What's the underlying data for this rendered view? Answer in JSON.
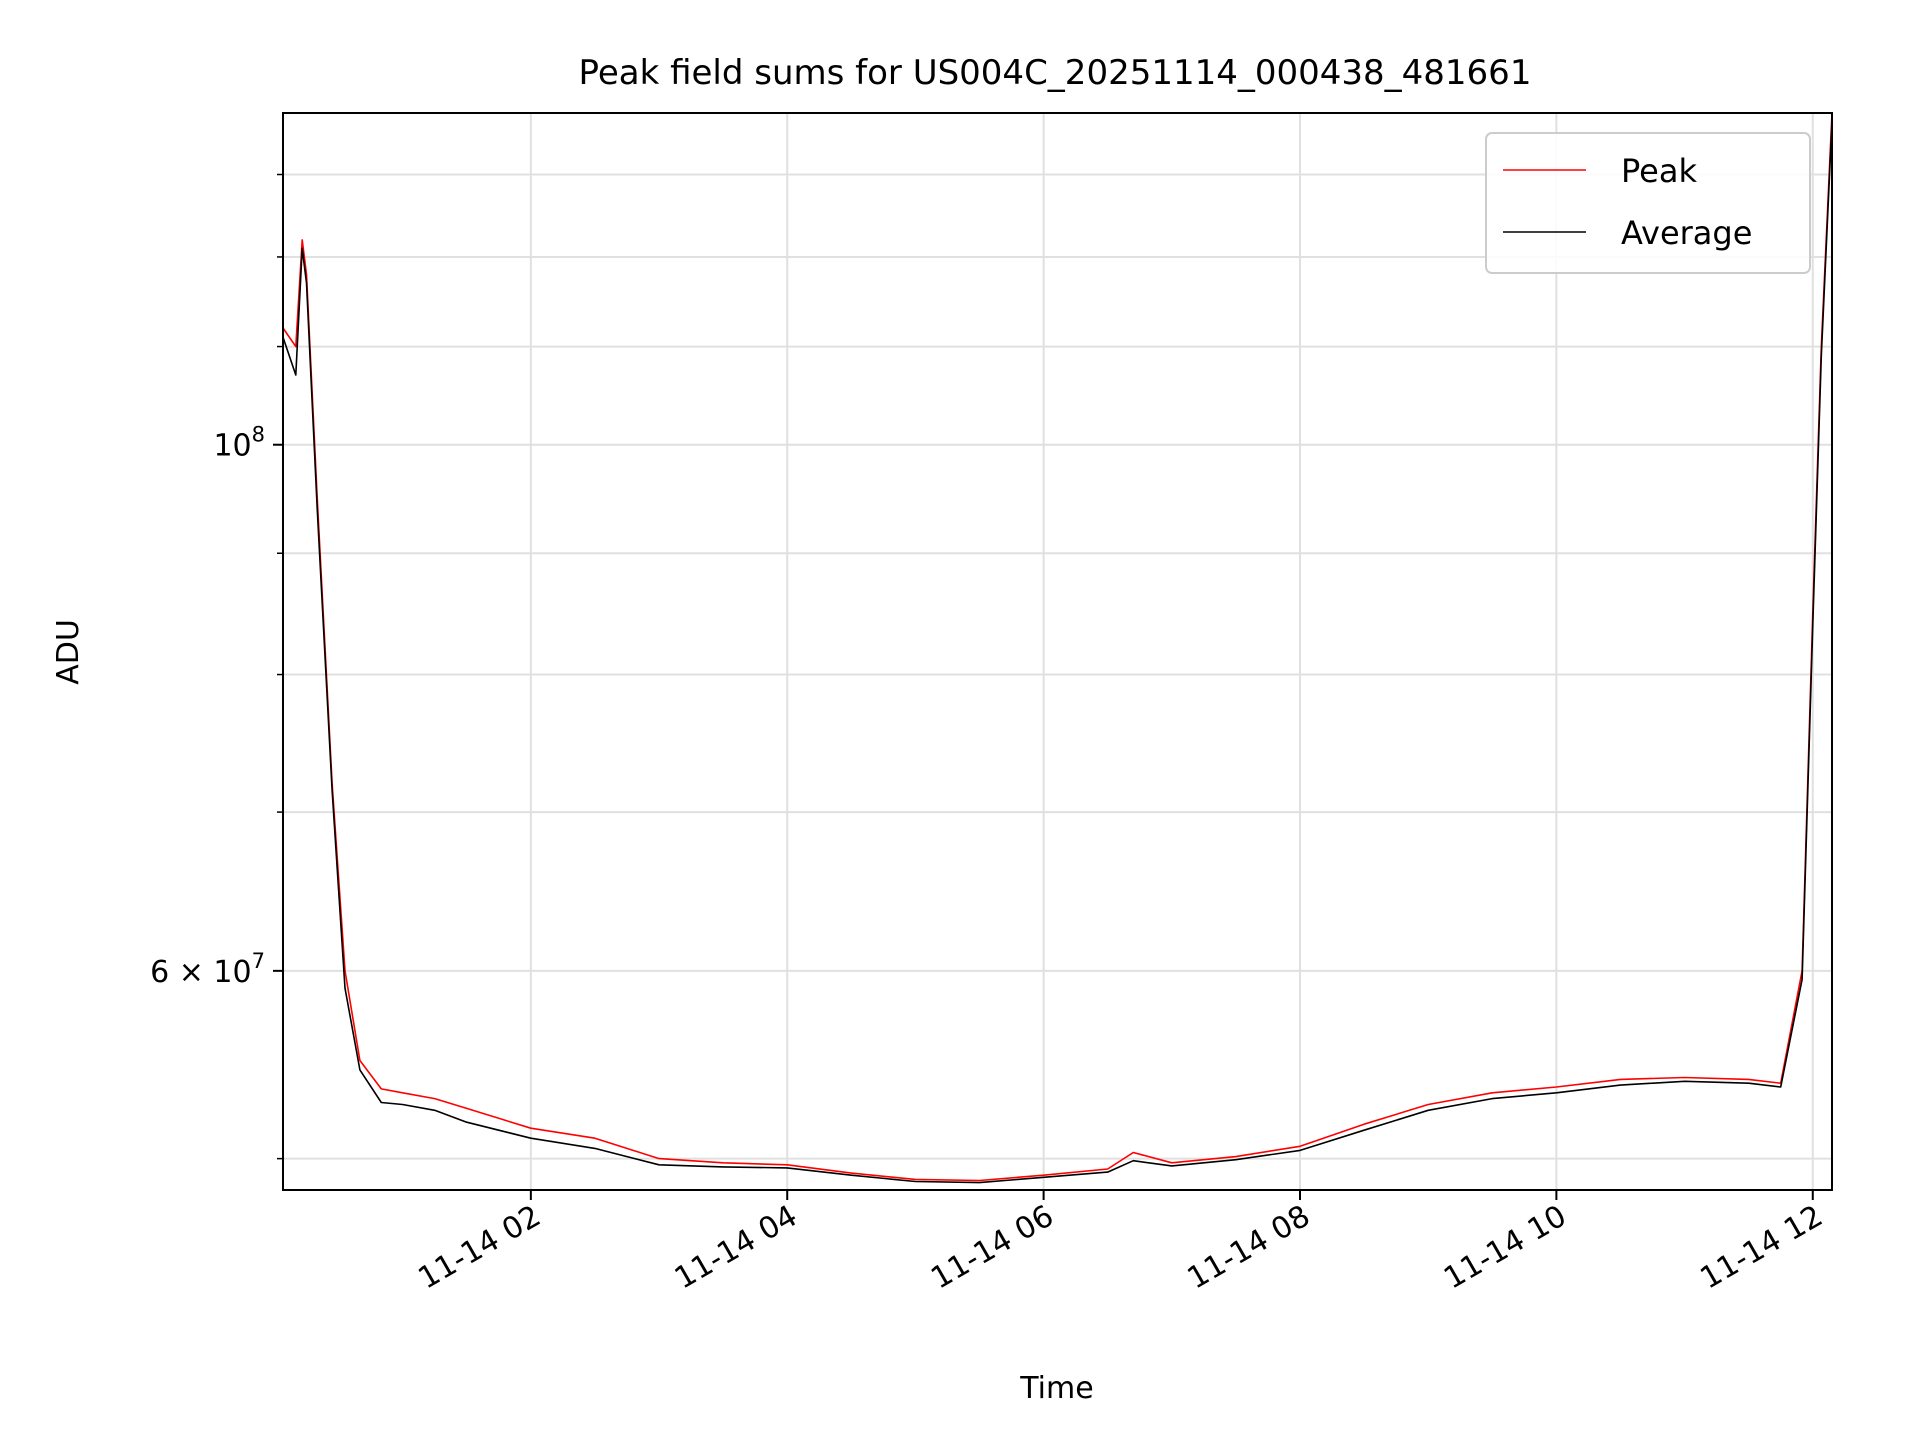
{
  "chart_data": {
    "type": "line",
    "title": "Peak field sums for US004C_20251114_000438_481661",
    "xlabel": "Time",
    "ylabel": "ADU",
    "y_scale": "log",
    "ylim": [
      48500000,
      138000000
    ],
    "xlim": [
      "2025-11-14 00:04",
      "2025-11-14 12:09"
    ],
    "grid": true,
    "legend": "top-right",
    "x_ticks": [
      "11-14 02",
      "11-14 04",
      "11-14 06",
      "11-14 08",
      "11-14 10",
      "11-14 12"
    ],
    "y_tick_labels": [
      {
        "base": "10",
        "exp": "8",
        "value": 100000000
      },
      {
        "prefix": "6 × 10",
        "exp": "7",
        "value": 60000000
      }
    ],
    "series": [
      {
        "name": "Peak",
        "color": "#ff0000",
        "x": [
          "2025-11-14 00:04",
          "2025-11-14 00:10",
          "2025-11-14 00:13",
          "2025-11-14 00:15",
          "2025-11-14 00:20",
          "2025-11-14 00:27",
          "2025-11-14 00:33",
          "2025-11-14 00:40",
          "2025-11-14 00:50",
          "2025-11-14 01:00",
          "2025-11-14 01:15",
          "2025-11-14 01:30",
          "2025-11-14 02:00",
          "2025-11-14 02:30",
          "2025-11-14 03:00",
          "2025-11-14 03:30",
          "2025-11-14 04:00",
          "2025-11-14 04:30",
          "2025-11-14 05:00",
          "2025-11-14 05:30",
          "2025-11-14 06:00",
          "2025-11-14 06:30",
          "2025-11-14 06:42",
          "2025-11-14 07:00",
          "2025-11-14 07:30",
          "2025-11-14 08:00",
          "2025-11-14 08:30",
          "2025-11-14 09:00",
          "2025-11-14 09:30",
          "2025-11-14 10:00",
          "2025-11-14 10:30",
          "2025-11-14 11:00",
          "2025-11-14 11:30",
          "2025-11-14 11:45",
          "2025-11-14 11:55",
          "2025-11-14 12:00",
          "2025-11-14 12:04",
          "2025-11-14 12:09"
        ],
        "y": [
          112000000,
          110000000,
          122000000,
          118000000,
          95000000,
          72000000,
          60000000,
          55000000,
          53500000,
          53300000,
          53000000,
          52500000,
          51500000,
          51000000,
          50000000,
          49800000,
          49700000,
          49300000,
          49000000,
          48950000,
          49200000,
          49500000,
          50300000,
          49800000,
          50100000,
          50600000,
          51700000,
          52700000,
          53300000,
          53600000,
          54000000,
          54100000,
          54000000,
          53800000,
          60000000,
          85000000,
          110000000,
          138000000
        ]
      },
      {
        "name": "Average",
        "color": "#000000",
        "x": [
          "2025-11-14 00:04",
          "2025-11-14 00:10",
          "2025-11-14 00:13",
          "2025-11-14 00:15",
          "2025-11-14 00:20",
          "2025-11-14 00:27",
          "2025-11-14 00:33",
          "2025-11-14 00:40",
          "2025-11-14 00:50",
          "2025-11-14 01:00",
          "2025-11-14 01:15",
          "2025-11-14 01:30",
          "2025-11-14 02:00",
          "2025-11-14 02:30",
          "2025-11-14 03:00",
          "2025-11-14 03:30",
          "2025-11-14 04:00",
          "2025-11-14 04:30",
          "2025-11-14 05:00",
          "2025-11-14 05:30",
          "2025-11-14 06:00",
          "2025-11-14 06:30",
          "2025-11-14 06:42",
          "2025-11-14 07:00",
          "2025-11-14 07:30",
          "2025-11-14 08:00",
          "2025-11-14 08:30",
          "2025-11-14 09:00",
          "2025-11-14 09:30",
          "2025-11-14 10:00",
          "2025-11-14 10:30",
          "2025-11-14 11:00",
          "2025-11-14 11:30",
          "2025-11-14 11:45",
          "2025-11-14 11:55",
          "2025-11-14 12:00",
          "2025-11-14 12:04",
          "2025-11-14 12:09"
        ],
        "y": [
          111000000,
          107000000,
          121000000,
          117000000,
          94000000,
          71500000,
          59000000,
          54500000,
          52800000,
          52700000,
          52400000,
          51800000,
          51000000,
          50500000,
          49700000,
          49600000,
          49550000,
          49200000,
          48900000,
          48850000,
          49100000,
          49350000,
          49900000,
          49650000,
          49950000,
          50400000,
          51400000,
          52400000,
          53000000,
          53300000,
          53700000,
          53900000,
          53800000,
          53600000,
          59500000,
          84000000,
          109000000,
          137000000
        ]
      }
    ]
  }
}
